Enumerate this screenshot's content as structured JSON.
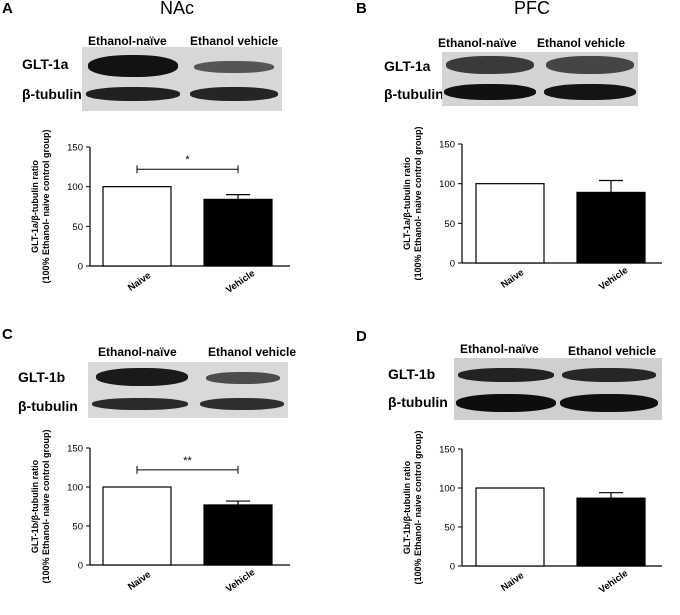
{
  "panels": [
    {
      "letter": "A",
      "region": "NAc",
      "lanes": [
        "Ethanol-naïve",
        "Ethanol vehicle"
      ],
      "bands": [
        "GLT-1a",
        "β-tubulin"
      ],
      "significance": "*"
    },
    {
      "letter": "B",
      "region": "PFC",
      "lanes": [
        "Ethanol-naïve",
        "Ethanol vehicle"
      ],
      "bands": [
        "GLT-1a",
        "β-tubulin"
      ],
      "significance": ""
    },
    {
      "letter": "C",
      "region": "",
      "lanes": [
        "Ethanol-naïve",
        "Ethanol vehicle"
      ],
      "bands": [
        "GLT-1b",
        "β-tubulin"
      ],
      "significance": "**"
    },
    {
      "letter": "D",
      "region": "",
      "lanes": [
        "Ethanol-naïve",
        "Ethanol vehicle"
      ],
      "bands": [
        "GLT-1b",
        "β-tubulin"
      ],
      "significance": ""
    }
  ],
  "chart_data": [
    {
      "type": "bar",
      "panel": "A",
      "categories": [
        "Naive",
        "Vehicle"
      ],
      "values": [
        100,
        84
      ],
      "errors": [
        0,
        6
      ],
      "bar_fill": [
        "#ffffff",
        "#000000"
      ],
      "ylabel_line1": "GLT-1a/β-tubulin ratio",
      "ylabel_line2": "(100% Ethanol- naive control group)",
      "ylim": [
        0,
        150
      ],
      "yticks": [
        "0",
        "50",
        "100",
        "150"
      ]
    },
    {
      "type": "bar",
      "panel": "B",
      "categories": [
        "Naive",
        "Vehicle"
      ],
      "values": [
        100,
        89
      ],
      "errors": [
        0,
        15
      ],
      "bar_fill": [
        "#ffffff",
        "#000000"
      ],
      "ylabel_line1": "GLT-1a/β-tubulin ratio",
      "ylabel_line2": "(100% Ethanol- naive control group)",
      "ylim": [
        0,
        150
      ],
      "yticks": [
        "0",
        "50",
        "100",
        "150"
      ]
    },
    {
      "type": "bar",
      "panel": "C",
      "categories": [
        "Naive",
        "Vehicle"
      ],
      "values": [
        100,
        77
      ],
      "errors": [
        0,
        5
      ],
      "bar_fill": [
        "#ffffff",
        "#000000"
      ],
      "ylabel_line1": "GLT-1b/β-tubulin ratio",
      "ylabel_line2": "(100% Ethanol- naive control group)",
      "ylim": [
        0,
        150
      ],
      "yticks": [
        "0",
        "50",
        "100",
        "150"
      ]
    },
    {
      "type": "bar",
      "panel": "D",
      "categories": [
        "Naive",
        "Vehicle"
      ],
      "values": [
        100,
        87
      ],
      "errors": [
        0,
        7
      ],
      "bar_fill": [
        "#ffffff",
        "#000000"
      ],
      "ylabel_line1": "GLT-1b/β-tubulin ratio",
      "ylabel_line2": "(100% Ethanol- naive control group)",
      "ylim": [
        0,
        150
      ],
      "yticks": [
        "0",
        "50",
        "100",
        "150"
      ]
    }
  ]
}
